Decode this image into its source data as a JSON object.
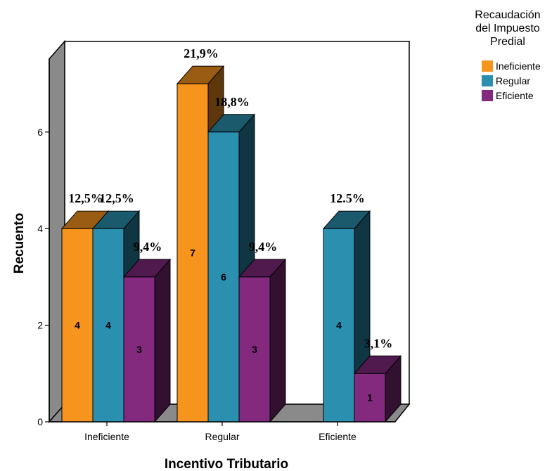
{
  "chart_data": {
    "type": "bar",
    "xlabel": "Incentivo Tributario",
    "ylabel": "Recuento",
    "ylim": [
      0,
      7.5
    ],
    "yticks": [
      "0",
      "2",
      "4",
      "6"
    ],
    "categories": [
      "Ineficiente",
      "Regular",
      "Eficiente"
    ],
    "legend": {
      "title_lines": [
        "Recaudación",
        "del Impuesto",
        "Predial"
      ],
      "placement": "top-right"
    },
    "grid": false,
    "series": [
      {
        "name": "Ineficiente",
        "color": "#f7941d",
        "values": [
          4,
          7,
          0
        ],
        "value_labels": [
          "4",
          "7",
          ""
        ],
        "percent_labels": [
          "12,5%",
          "21,9%",
          ""
        ]
      },
      {
        "name": "Regular",
        "color": "#2b8fb0",
        "values": [
          4,
          6,
          4
        ],
        "value_labels": [
          "4",
          "6",
          "4"
        ],
        "percent_labels": [
          "12,5%",
          "18,8%",
          "12.5%"
        ]
      },
      {
        "name": "Eficiente",
        "color": "#832a7f",
        "values": [
          3,
          3,
          1
        ],
        "value_labels": [
          "3",
          "3",
          "1"
        ],
        "percent_labels": [
          "9,4%",
          "9,4%",
          "3,1%"
        ]
      }
    ]
  }
}
